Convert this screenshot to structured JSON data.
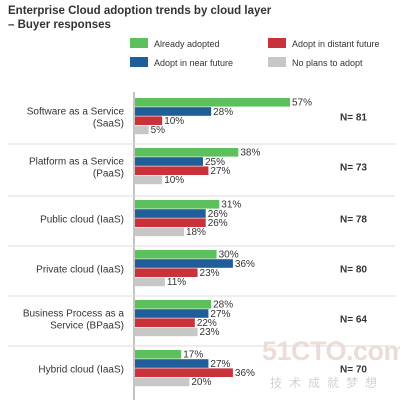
{
  "title_line1": "Enterprise Cloud adoption trends by cloud layer",
  "title_line2": "– Buyer responses",
  "watermark": {
    "logo": "51CTO.com",
    "sub": "技术成就梦想"
  },
  "colors": {
    "Already adopted": "#5cc15c",
    "Adopt in near future": "#1f5e99",
    "Adopt in distant future": "#c9313b",
    "No plans to adopt": "#c7c7c7",
    "separator": "#dddddd",
    "axis": "#888888",
    "label_text": "#333333"
  },
  "chart_data": {
    "type": "bar",
    "orientation": "horizontal",
    "title": "Enterprise Cloud adoption trends by cloud layer – Buyer responses",
    "categories": [
      "Software as a Service (SaaS)",
      "Platform as a Service (PaaS)",
      "Public cloud (IaaS)",
      "Private cloud (IaaS)",
      "Business Process as a Service (BPaaS)",
      "Hybrid cloud (IaaS)"
    ],
    "category_label_lines": [
      [
        "Software as a Service",
        "(SaaS)"
      ],
      [
        "Platform as a Service",
        "(PaaS)"
      ],
      [
        "Public cloud (IaaS)"
      ],
      [
        "Private cloud (IaaS)"
      ],
      [
        "Business Process as a",
        "Service (BPaaS)"
      ],
      [
        "Hybrid cloud (IaaS)"
      ]
    ],
    "n_labels": [
      "N= 81",
      "N= 73",
      "N= 78",
      "N= 80",
      "N= 64",
      "N= 70"
    ],
    "series": [
      {
        "name": "Already adopted",
        "values": [
          57,
          38,
          31,
          30,
          28,
          17
        ]
      },
      {
        "name": "Adopt in near future",
        "values": [
          28,
          25,
          26,
          36,
          27,
          27
        ]
      },
      {
        "name": "Adopt in distant future",
        "values": [
          10,
          27,
          26,
          23,
          22,
          36
        ]
      },
      {
        "name": "No plans to adopt",
        "values": [
          5,
          10,
          18,
          11,
          23,
          20
        ]
      }
    ],
    "value_suffix": "%",
    "xlim": [
      0,
      57
    ],
    "legend_position": "top-right",
    "legend_order": [
      "Already adopted",
      "Adopt in distant future",
      "Adopt in near future",
      "No plans to adopt"
    ],
    "grid": false
  }
}
